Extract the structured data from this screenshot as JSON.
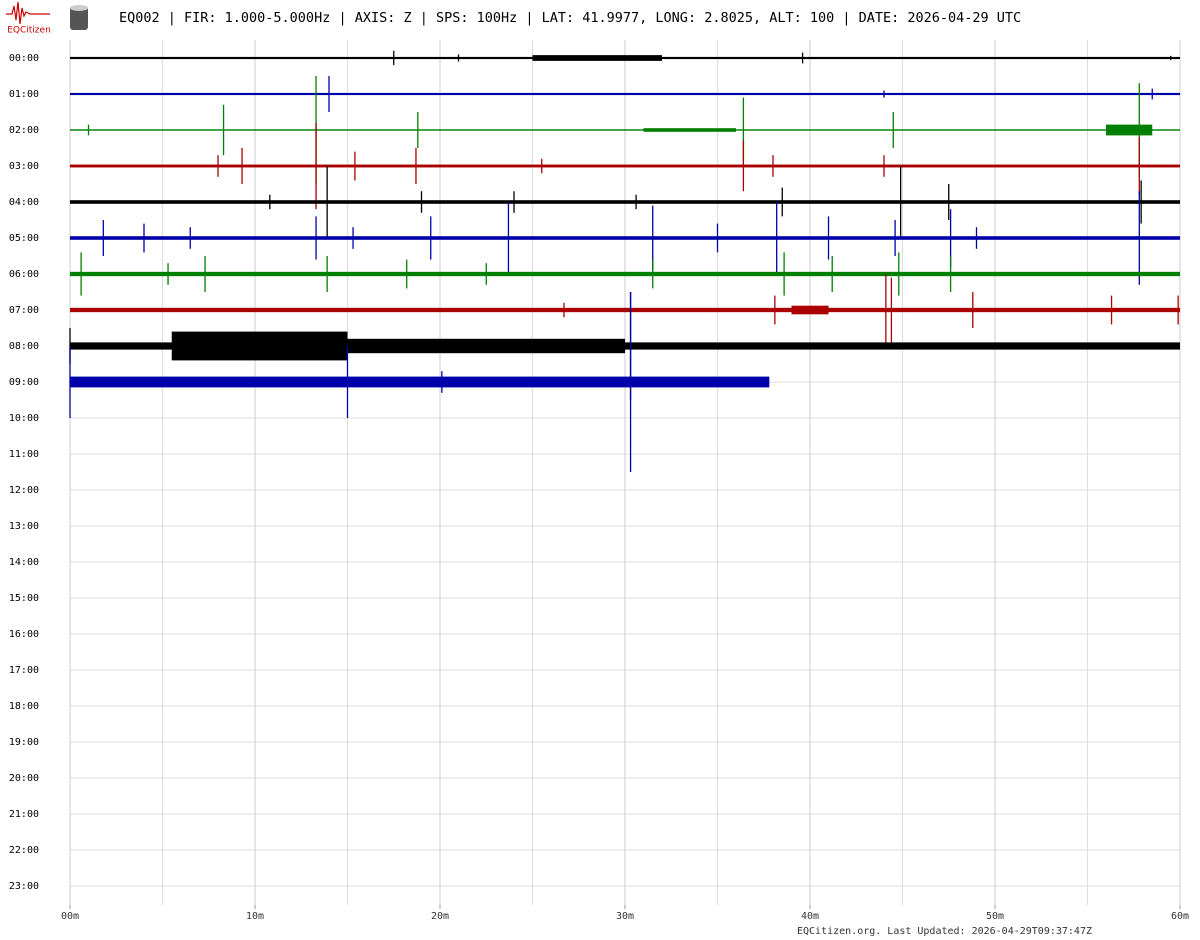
{
  "header": {
    "title": "EQ002 | FIR: 1.000-5.000Hz | AXIS: Z | SPS: 100Hz | LAT: 41.9977, LONG: 2.8025, ALT: 100 | DATE: 2026-04-29 UTC",
    "logo": "EQCitizen"
  },
  "chart_data": {
    "type": "helicorder",
    "categories": [
      "00:00",
      "01:00",
      "02:00",
      "03:00",
      "04:00",
      "05:00",
      "06:00",
      "07:00",
      "08:00",
      "09:00",
      "10:00",
      "11:00",
      "12:00",
      "13:00",
      "14:00",
      "15:00",
      "16:00",
      "17:00",
      "18:00",
      "19:00",
      "20:00",
      "21:00",
      "22:00",
      "23:00"
    ],
    "xlim": [
      0,
      60
    ],
    "xticks": [
      {
        "value": 0,
        "label": "00m"
      },
      {
        "value": 10,
        "label": "10m"
      },
      {
        "value": 20,
        "label": "20m"
      },
      {
        "value": 30,
        "label": "30m"
      },
      {
        "value": 40,
        "label": "40m"
      },
      {
        "value": 50,
        "label": "50m"
      },
      {
        "value": 60,
        "label": "60m"
      }
    ],
    "xminor": [
      5,
      15,
      25,
      35,
      45,
      55
    ],
    "grid": true,
    "series": [
      {
        "color": "#000000",
        "extent": [
          0,
          60
        ],
        "noise": 0.03,
        "x": [
          17.5,
          21,
          39.6,
          59.5
        ],
        "values": [
          0.2,
          0.1,
          0.15,
          0.06
        ],
        "bursts": {
          "start": [
            25
          ],
          "end": [
            32
          ],
          "values": [
            0.08
          ]
        }
      },
      {
        "color": "#0000aa",
        "extent": [
          0,
          60
        ],
        "noise": 0.03,
        "x": [
          14,
          44,
          58.5
        ],
        "values": [
          0.5,
          0.1,
          0.15
        ],
        "bursts": {
          "start": [],
          "end": [],
          "values": []
        }
      },
      {
        "color": "#008000",
        "extent": [
          0,
          60
        ],
        "noise": 0.02,
        "x": [
          1,
          8.3,
          13.3,
          18.8,
          36.4,
          44.5,
          57.8
        ],
        "values": [
          0.15,
          0.7,
          1.5,
          0.5,
          0.9,
          0.5,
          1.3
        ],
        "bursts": {
          "start": [
            31,
            56
          ],
          "end": [
            36,
            58.5
          ],
          "values": [
            0.05,
            0.15
          ]
        }
      },
      {
        "color": "#aa0000",
        "extent": [
          0,
          60
        ],
        "noise": 0.04,
        "x": [
          8,
          9.3,
          13.3,
          15.4,
          18.7,
          25.5,
          36.4,
          38,
          44,
          57.8
        ],
        "values": [
          0.3,
          0.5,
          1.2,
          0.4,
          0.5,
          0.2,
          0.7,
          0.3,
          0.3,
          0.8
        ],
        "bursts": {
          "start": [],
          "end": [],
          "values": []
        }
      },
      {
        "color": "#000000",
        "extent": [
          0,
          60
        ],
        "noise": 0.05,
        "x": [
          10.8,
          13.9,
          19,
          24,
          30.6,
          38.5,
          44.9,
          47.5,
          57.9
        ],
        "values": [
          0.2,
          1.0,
          0.3,
          0.3,
          0.2,
          0.4,
          1.0,
          0.5,
          0.6
        ],
        "bursts": {
          "start": [],
          "end": [],
          "values": []
        }
      },
      {
        "color": "#0000aa",
        "extent": [
          0,
          60
        ],
        "noise": 0.05,
        "x": [
          1.8,
          4,
          6.5,
          13.3,
          15.3,
          19.5,
          23.7,
          31.5,
          35,
          38.2,
          41,
          44.6,
          47.6,
          49,
          57.8
        ],
        "values": [
          0.5,
          0.4,
          0.3,
          0.6,
          0.3,
          0.6,
          1.0,
          0.9,
          0.4,
          1.0,
          0.6,
          0.5,
          0.8,
          0.3,
          1.3
        ],
        "bursts": {
          "start": [],
          "end": [],
          "values": []
        }
      },
      {
        "color": "#008000",
        "extent": [
          0,
          60
        ],
        "noise": 0.06,
        "x": [
          0.6,
          5.3,
          7.3,
          13.9,
          18.2,
          22.5,
          31.5,
          38.6,
          41.2,
          44.8,
          47.6
        ],
        "values": [
          0.6,
          0.3,
          0.5,
          0.5,
          0.4,
          0.3,
          0.4,
          0.6,
          0.5,
          0.6,
          0.5
        ],
        "bursts": {
          "start": [],
          "end": [],
          "values": []
        }
      },
      {
        "color": "#aa0000",
        "extent": [
          0,
          60
        ],
        "noise": 0.06,
        "x": [
          26.7,
          38.1,
          44.1,
          44.4,
          48.8,
          56.3,
          59.9
        ],
        "values": [
          0.2,
          0.4,
          1.0,
          0.9,
          0.5,
          0.4,
          0.4
        ],
        "bursts": {
          "start": [
            39
          ],
          "end": [
            41
          ],
          "values": [
            0.12
          ]
        }
      },
      {
        "color": "#000000",
        "extent": [
          0,
          60
        ],
        "noise": 0.1,
        "x": [
          0,
          30.3
        ],
        "values": [
          0.5,
          1.5
        ],
        "bursts": {
          "start": [
            5.5,
            15
          ],
          "end": [
            15,
            30
          ],
          "values": [
            0.4,
            0.2
          ]
        }
      },
      {
        "color": "#0000aa",
        "extent": [
          0,
          37.8
        ],
        "noise": 0.15,
        "x": [
          0,
          15,
          20.1,
          30.3
        ],
        "values": [
          1.0,
          1.0,
          0.3,
          2.5
        ],
        "bursts": {
          "start": [],
          "end": [],
          "values": []
        }
      }
    ]
  },
  "footer": "EQCitizen.org. Last Updated: 2026-04-29T09:37:47Z"
}
